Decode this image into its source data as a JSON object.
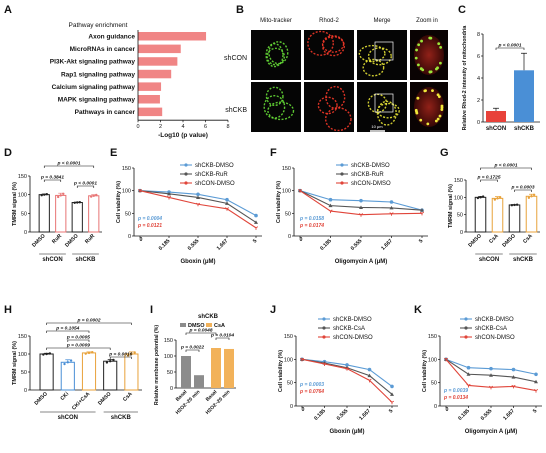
{
  "panels": {
    "A": {
      "label": "A",
      "chart_data": {
        "type": "bar",
        "title": "Pathway enrichment",
        "xlabel": "-Log10 (p value)",
        "categories": [
          "Axon guidance",
          "MicroRNAs in cancer",
          "PI3K-Akt signaling pathway",
          "Rap1 signaling pathway",
          "Calcium signaling pathway",
          "MAPK signaling pathway",
          "Pathways in cancer"
        ],
        "values": [
          6.05,
          3.8,
          3.5,
          2.95,
          2.05,
          1.95,
          2.15
        ],
        "xlim": [
          0,
          8
        ],
        "xticks": [
          "0",
          "2",
          "4",
          "6",
          "8"
        ],
        "color": "#f08585"
      }
    },
    "B": {
      "label": "B",
      "columns": [
        "Mito-tracker",
        "Rhod-2",
        "Merge",
        "Zoom in"
      ],
      "rows": [
        "shCON",
        "shCKB"
      ],
      "scale_bar": "10 μm"
    },
    "C": {
      "label": "C",
      "chart_data": {
        "type": "bar",
        "ylabel": "Relative Rhod-2 intensity of mitochondria",
        "categories": [
          "shCON",
          "shCKB"
        ],
        "values": [
          1.0,
          4.7
        ],
        "errors": [
          0.25,
          1.55
        ],
        "ylim": [
          0,
          8
        ],
        "yticks": [
          "0",
          "2",
          "4",
          "6",
          "8"
        ],
        "colors": [
          "#e8423a",
          "#4a8fd6"
        ],
        "pvalue": "p < 0.0001"
      }
    },
    "D": {
      "label": "D",
      "chart_data": {
        "type": "bar",
        "ylabel": "TMRM signal (%)",
        "categories": [
          "DMSO",
          "RuR",
          "DMSO",
          "RuR"
        ],
        "groups": [
          "shCON",
          "shCKB"
        ],
        "values": [
          100,
          98,
          79,
          97
        ],
        "errors": [
          2,
          6,
          1,
          3
        ],
        "ylim": [
          0,
          150
        ],
        "yticks": [
          "0",
          "50",
          "100",
          "150"
        ],
        "edge_colors": [
          "#222222",
          "#e87575",
          "#222222",
          "#e87575"
        ],
        "pvalues": [
          "p < 0.0001",
          "p = 0.3841",
          "p < 0.0001"
        ]
      }
    },
    "E": {
      "label": "E",
      "chart_data": {
        "type": "line",
        "xlabel": "Gboxin (μM)",
        "ylabel": "Cell viability (%)",
        "x": [
          "0",
          "0.185",
          "0.555",
          "1.667",
          "5"
        ],
        "ylim": [
          0,
          150
        ],
        "yticks": [
          "0",
          "50",
          "100",
          "150"
        ],
        "series": [
          {
            "name": "shCKB-DMSO",
            "values": [
              100,
              97,
              92,
              80,
              45
            ],
            "color": "#5b9bd5"
          },
          {
            "name": "shCKB-RuR",
            "values": [
              100,
              93,
              85,
              72,
              30
            ],
            "color": "#555555"
          },
          {
            "name": "shCON-DMSO",
            "values": [
              100,
              85,
              70,
              60,
              18
            ],
            "color": "#e0453a"
          }
        ],
        "pvalues": [
          {
            "text": "p = 0.0004",
            "color": "#5b9bd5"
          },
          {
            "text": "p = 0.0121",
            "color": "#e0453a"
          }
        ]
      }
    },
    "F": {
      "label": "F",
      "chart_data": {
        "type": "line",
        "xlabel": "Oligomycin A (μM)",
        "ylabel": "Cell viability (%)",
        "x": [
          "0",
          "0.185",
          "0.555",
          "1.667",
          "5"
        ],
        "ylim": [
          0,
          150
        ],
        "yticks": [
          "0",
          "50",
          "100",
          "150"
        ],
        "series": [
          {
            "name": "shCKB-DMSO",
            "values": [
              100,
              80,
              78,
              75,
              57
            ],
            "color": "#5b9bd5"
          },
          {
            "name": "shCKB-RuR",
            "values": [
              100,
              67,
              63,
              62,
              57
            ],
            "color": "#555555"
          },
          {
            "name": "shCON-DMSO",
            "values": [
              100,
              55,
              47,
              49,
              50
            ],
            "color": "#e0453a"
          }
        ],
        "pvalues": [
          {
            "text": "p = 0.0158",
            "color": "#5b9bd5"
          },
          {
            "text": "p = 0.0174",
            "color": "#e0453a"
          }
        ]
      }
    },
    "G": {
      "label": "G",
      "chart_data": {
        "type": "bar",
        "ylabel": "TMRM signal (%)",
        "categories": [
          "DMSO",
          "CsA",
          "DMSO",
          "CsA"
        ],
        "groups": [
          "shCON",
          "shCKB"
        ],
        "values": [
          100,
          97,
          78,
          103
        ],
        "errors": [
          3,
          5,
          1,
          6
        ],
        "ylim": [
          0,
          150
        ],
        "yticks": [
          "0",
          "50",
          "100",
          "150"
        ],
        "edge_colors": [
          "#222222",
          "#e8a23a",
          "#222222",
          "#e8a23a"
        ],
        "pvalues": [
          "p < 0.0001",
          "p = 0.1725",
          "p = 0.0003"
        ]
      }
    },
    "H": {
      "label": "H",
      "chart_data": {
        "type": "bar",
        "ylabel": "TMRM signal (%)",
        "categories": [
          "DMSO",
          "CKi",
          "CKi+CsA",
          "DMSO",
          "CsA"
        ],
        "groups": [
          "shCON",
          "shCKB"
        ],
        "values": [
          100,
          77,
          103,
          80,
          100
        ],
        "errors": [
          2,
          7,
          3,
          5,
          6
        ],
        "ylim": [
          0,
          150
        ],
        "yticks": [
          "0",
          "50",
          "100",
          "150"
        ],
        "edge_colors": [
          "#222222",
          "#4a8fd6",
          "#e8a23a",
          "#222222",
          "#e8a23a"
        ],
        "pvalues": [
          "p = 0.0002",
          "p = 0.1054",
          "p = 0.0005",
          "p = 0.0009",
          "p = 0.0016"
        ]
      }
    },
    "I": {
      "label": "I",
      "chart_data": {
        "type": "bar",
        "title": "shCKB",
        "ylabel": "Relative membrane potential (%)",
        "categories": [
          "Basal",
          "H2O2~20 min",
          "Basal",
          "H2O2~20 min"
        ],
        "series": [
          {
            "name": "DMSO",
            "color": "#8c8c8c"
          },
          {
            "name": "CsA",
            "color": "#f2b25a"
          }
        ],
        "values": [
          100,
          40,
          125,
          122
        ],
        "ylim": [
          0,
          150
        ],
        "yticks": [
          "0",
          "50",
          "100",
          "150"
        ],
        "pvalues": [
          "p = 0.0048",
          "p = 0.0104",
          "p = 0.0022"
        ]
      }
    },
    "J": {
      "label": "J",
      "chart_data": {
        "type": "line",
        "xlabel": "Gboxin (μM)",
        "ylabel": "Cell viability (%)",
        "x": [
          "0",
          "0.185",
          "0.555",
          "1.667",
          "5"
        ],
        "ylim": [
          0,
          150
        ],
        "yticks": [
          "0",
          "50",
          "100",
          "150"
        ],
        "series": [
          {
            "name": "shCKB-DMSO",
            "values": [
              100,
              95,
              88,
              78,
              42
            ],
            "color": "#5b9bd5"
          },
          {
            "name": "shCKB-CsA",
            "values": [
              100,
              92,
              82,
              65,
              25
            ],
            "color": "#555555"
          },
          {
            "name": "shCON-DMSO",
            "values": [
              100,
              90,
              80,
              55,
              8
            ],
            "color": "#e0453a"
          }
        ],
        "pvalues": [
          {
            "text": "p = 0.0003",
            "color": "#5b9bd5"
          },
          {
            "text": "p = 0.0764",
            "color": "#e0453a"
          }
        ]
      }
    },
    "K": {
      "label": "K",
      "chart_data": {
        "type": "line",
        "xlabel": "Oligomycin A (μM)",
        "ylabel": "Cell viability (%)",
        "x": [
          "0",
          "0.185",
          "0.555",
          "1.667",
          "5"
        ],
        "ylim": [
          0,
          150
        ],
        "yticks": [
          "0",
          "50",
          "100",
          "150"
        ],
        "series": [
          {
            "name": "shCKB-DMSO",
            "values": [
              100,
              82,
              80,
              78,
              68
            ],
            "color": "#5b9bd5"
          },
          {
            "name": "shCKB-CsA",
            "values": [
              100,
              68,
              66,
              62,
              52
            ],
            "color": "#555555"
          },
          {
            "name": "shCON-DMSO",
            "values": [
              100,
              44,
              40,
              42,
              33
            ],
            "color": "#e0453a"
          }
        ],
        "pvalues": [
          {
            "text": "p = 0.0039",
            "color": "#5b9bd5"
          },
          {
            "text": "p = 0.0134",
            "color": "#e0453a"
          }
        ]
      }
    }
  }
}
